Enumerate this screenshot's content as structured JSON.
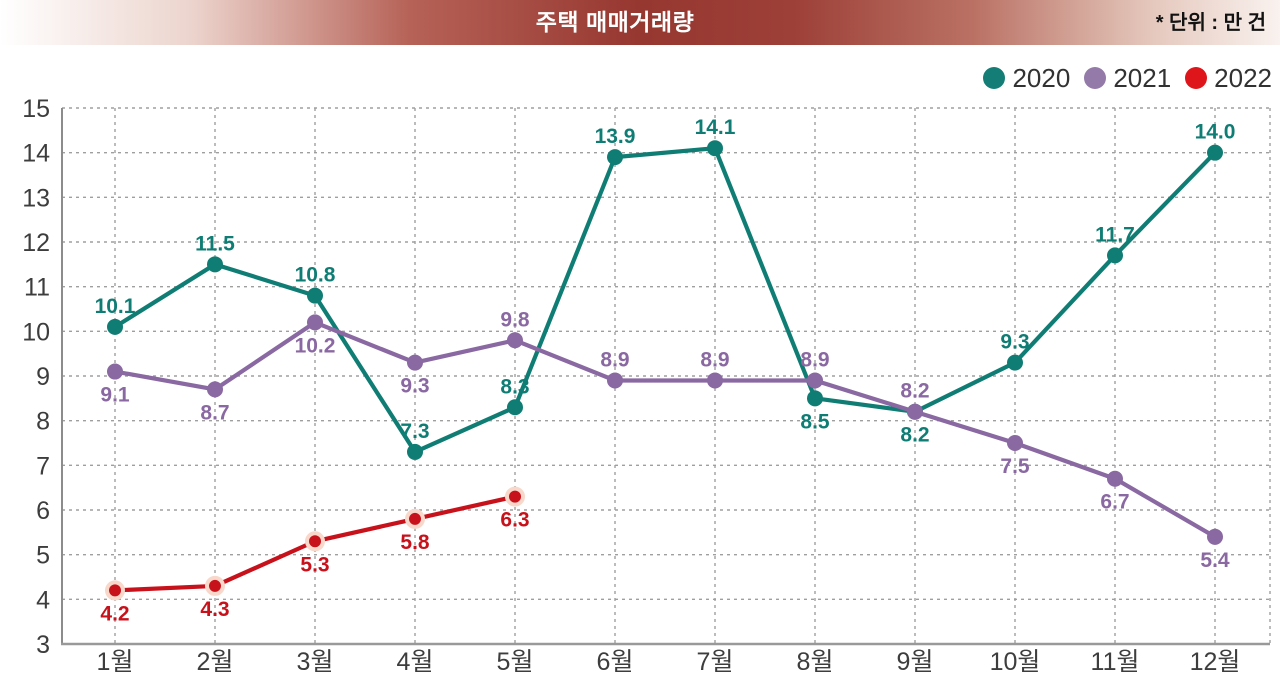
{
  "banner": {
    "title": "주택 매매거래량",
    "unit_note": "* 단위 : 만 건"
  },
  "legend": {
    "position": "top-right",
    "items": [
      {
        "label": "2020",
        "color": "#147e76"
      },
      {
        "label": "2021",
        "color": "#937aa8"
      },
      {
        "label": "2022",
        "color": "#de161c"
      }
    ]
  },
  "chart_data": {
    "type": "line",
    "title": "주택 매매거래량",
    "unit": "만 건",
    "categories": [
      "1월",
      "2월",
      "3월",
      "4월",
      "5월",
      "6월",
      "7월",
      "8월",
      "9월",
      "10월",
      "11월",
      "12월"
    ],
    "ylim": [
      3,
      15
    ],
    "ytick_step": 1,
    "grid": "dashed",
    "legend_position": "top-right",
    "series": [
      {
        "name": "2020",
        "color": "#107d75",
        "marker_halo": false,
        "values": [
          10.1,
          11.5,
          10.8,
          7.3,
          8.3,
          13.9,
          14.1,
          8.5,
          8.2,
          9.3,
          11.7,
          14.0
        ],
        "label_side": [
          "above",
          "above",
          "above",
          "above",
          "above",
          "above",
          "above",
          "below",
          "below",
          "above",
          "above",
          "above"
        ]
      },
      {
        "name": "2021",
        "color": "#8a68a2",
        "marker_halo": false,
        "values": [
          9.1,
          8.7,
          10.2,
          9.3,
          9.8,
          8.9,
          8.9,
          8.9,
          8.2,
          7.5,
          6.7,
          5.4
        ],
        "label_side": [
          "below",
          "below",
          "below",
          "below",
          "above",
          "above",
          "above",
          "above",
          "above",
          "below",
          "below",
          "below"
        ]
      },
      {
        "name": "2022",
        "color": "#c8121b",
        "marker_halo": true,
        "halo_color": "#f8d8cb",
        "values": [
          4.2,
          4.3,
          5.3,
          5.8,
          6.3
        ],
        "label_side": [
          "below",
          "below",
          "below",
          "below",
          "below"
        ]
      }
    ]
  }
}
